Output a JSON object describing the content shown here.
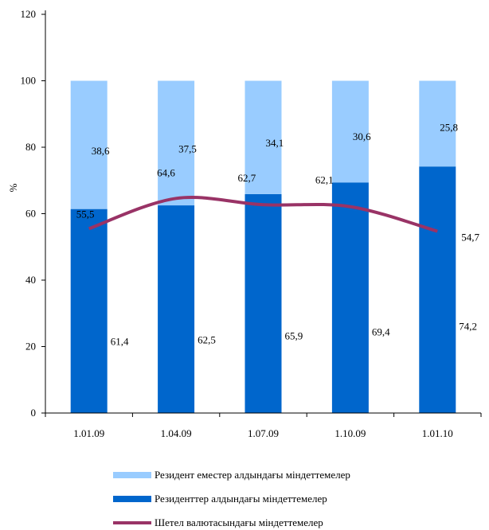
{
  "chart_data": {
    "type": "bar",
    "stacked": true,
    "ylabel": "%",
    "ylim": [
      0,
      120
    ],
    "yticks": [
      "0",
      "20",
      "40",
      "60",
      "80",
      "100",
      "120"
    ],
    "categories": [
      "1.01.09",
      "1.04.09",
      "1.07.09",
      "1.10.09",
      "1.01.10"
    ],
    "series": [
      {
        "name": "Резиденттер алдындағы міндеттемелер",
        "kind": "bar",
        "color": "#0066cc",
        "values": [
          61.4,
          62.5,
          65.9,
          69.4,
          74.2
        ],
        "labels": [
          "61,4",
          "62,5",
          "65,9",
          "69,4",
          "74,2"
        ]
      },
      {
        "name": "Резидент еместер алдындағы міндеттемелер",
        "kind": "bar",
        "color": "#99ccff",
        "values": [
          38.6,
          37.5,
          34.1,
          30.6,
          25.8
        ],
        "labels": [
          "38,6",
          "37,5",
          "34,1",
          "30,6",
          "25,8"
        ]
      },
      {
        "name": "Шетел валютасындағы міндеттемелер",
        "kind": "line",
        "color": "#993366",
        "values": [
          55.5,
          64.6,
          62.7,
          62.1,
          54.7
        ],
        "labels": [
          "55,5",
          "64,6",
          "62,7",
          "62,1",
          "54,7"
        ]
      }
    ],
    "legend_position": "bottom",
    "grid": false
  }
}
